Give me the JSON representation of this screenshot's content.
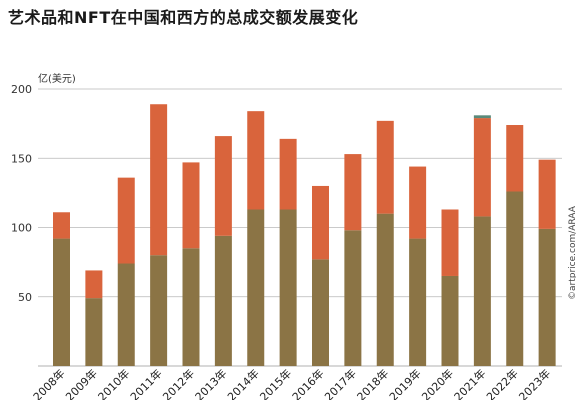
{
  "chart_data": {
    "type": "bar",
    "stacked": true,
    "title": "艺术品和NFT在中国和西方的总成交额发展变化",
    "ylabel": "亿(美元)",
    "ylim": [
      0,
      200
    ],
    "yticks": [
      50,
      100,
      150,
      200
    ],
    "grid": "horizontal",
    "categories": [
      "2008年",
      "2009年",
      "2010年",
      "2011年",
      "2012年",
      "2013年",
      "2014年",
      "2015年",
      "2016年",
      "2017年",
      "2018年",
      "2019年",
      "2020年",
      "2021年",
      "2022年",
      "2023年"
    ],
    "series": [
      {
        "color": "#8b7445",
        "values": [
          92,
          49,
          74,
          80,
          85,
          94,
          113,
          113,
          77,
          98,
          110,
          92,
          65,
          108,
          126,
          99
        ]
      },
      {
        "color": "#d9643c",
        "values": [
          19,
          20,
          62,
          109,
          62,
          72,
          71,
          51,
          53,
          55,
          67,
          52,
          48,
          71,
          48,
          50
        ]
      },
      {
        "color": "#5a8a7a",
        "values": [
          0,
          0,
          0,
          0,
          0,
          0,
          0,
          0,
          0,
          0,
          0,
          0,
          0,
          2,
          0,
          0
        ]
      }
    ]
  },
  "credit": "©artprice.com/ARAA"
}
